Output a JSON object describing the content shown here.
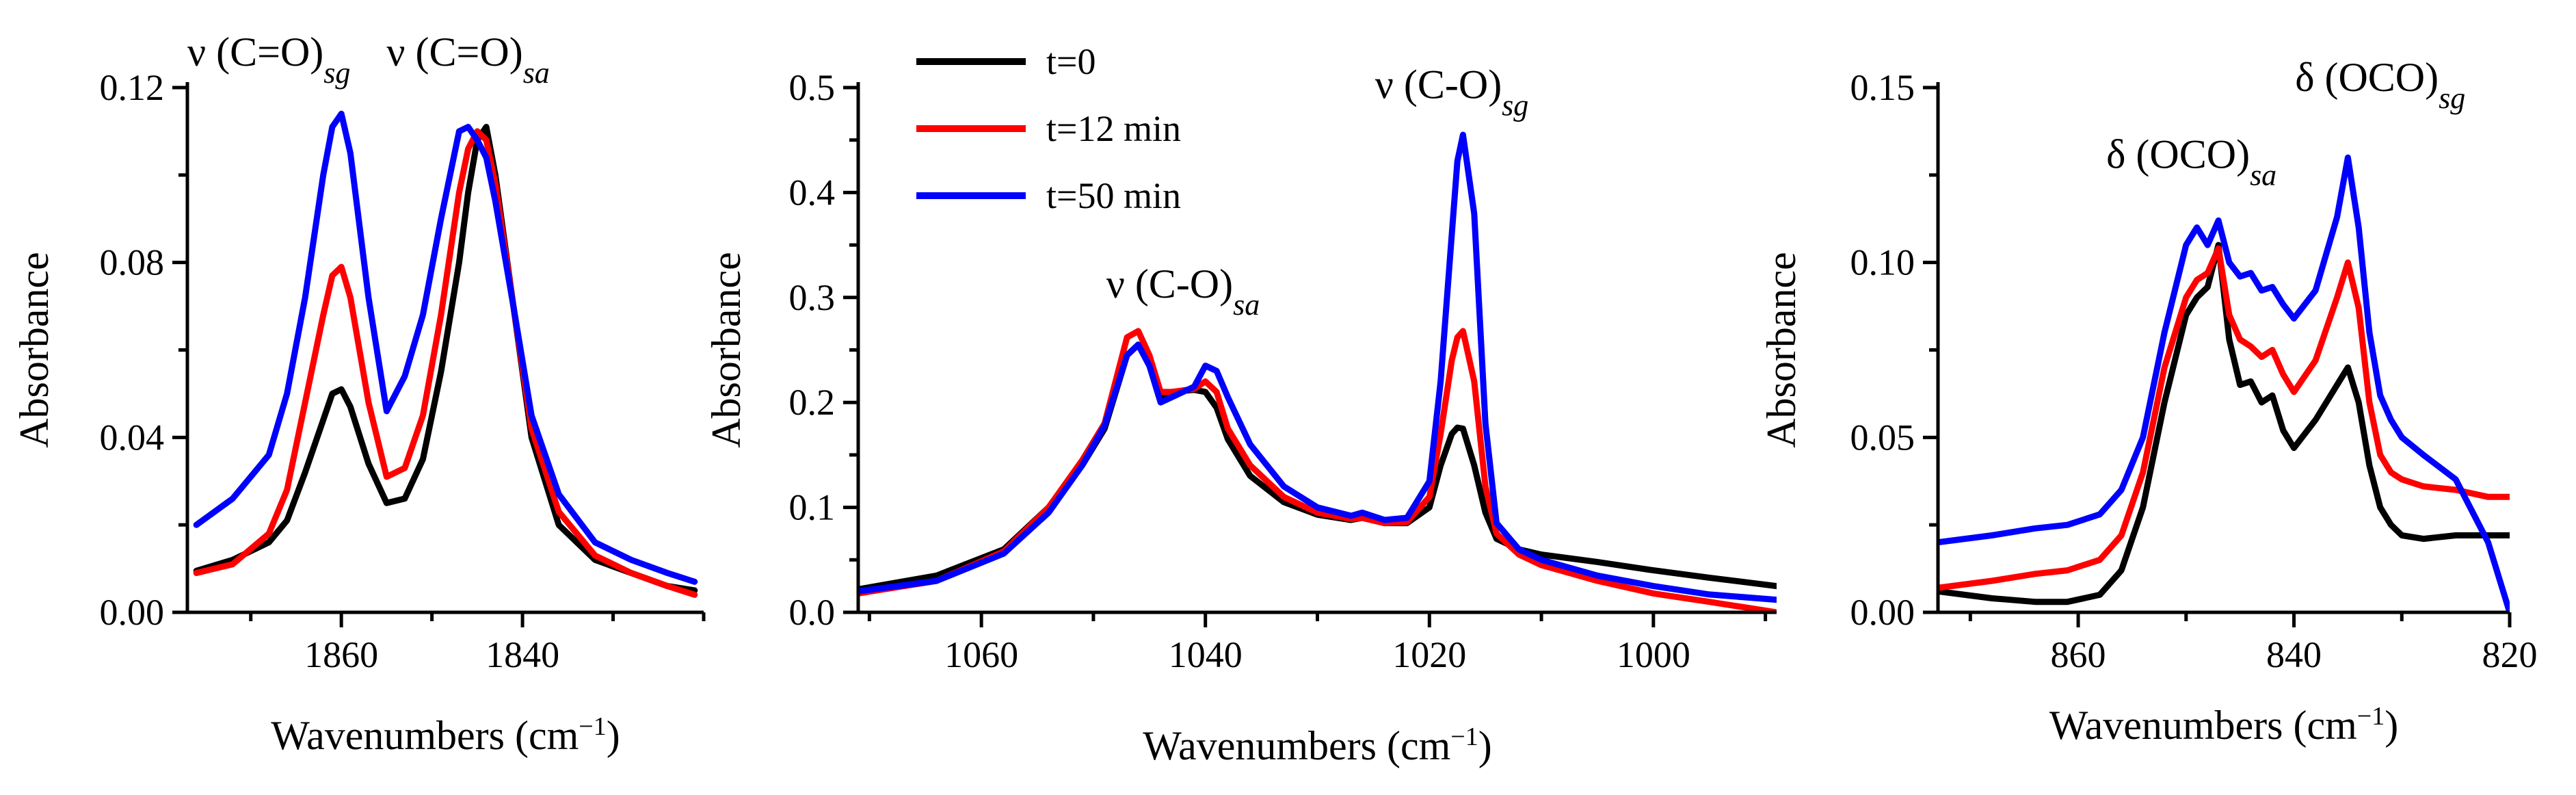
{
  "chart_data": [
    {
      "id": "p1",
      "type": "line",
      "xlabel": "Wavenumbers (cm",
      "xlabel_sup": "−1",
      "xlabel_close": ")",
      "ylabel": "Absorbance",
      "xlim": [
        1877,
        1820
      ],
      "ylim": [
        0,
        0.12
      ],
      "xticks": [
        1860,
        1840
      ],
      "xtick_labels": [
        "1860",
        "1840"
      ],
      "yticks": [
        0,
        0.04,
        0.08,
        0.12
      ],
      "ytick_labels": [
        "0.00",
        "0.04",
        "0.08",
        "0.12"
      ],
      "annotations": [
        {
          "key": "a1",
          "prefix": "ν (C=O)",
          "sub": "sg",
          "x": 1868,
          "y": 0.125
        },
        {
          "key": "a2",
          "prefix": "ν (C=O)",
          "sub": "sa",
          "x": 1846,
          "y": 0.125
        }
      ],
      "series": [
        {
          "name": "t=0",
          "color": "#000000",
          "x": [
            1876,
            1872,
            1868,
            1866,
            1864,
            1862,
            1861,
            1860,
            1859,
            1857,
            1855,
            1853,
            1851,
            1849,
            1847,
            1846,
            1845,
            1844,
            1843,
            1841,
            1839,
            1836,
            1832,
            1828,
            1824,
            1821
          ],
          "y": [
            0.0095,
            0.012,
            0.016,
            0.021,
            0.032,
            0.044,
            0.05,
            0.051,
            0.047,
            0.034,
            0.025,
            0.026,
            0.035,
            0.055,
            0.08,
            0.096,
            0.108,
            0.111,
            0.1,
            0.07,
            0.04,
            0.02,
            0.012,
            0.009,
            0.006,
            0.005
          ]
        },
        {
          "name": "t=12 min",
          "color": "#ff0000",
          "x": [
            1876,
            1872,
            1868,
            1866,
            1864,
            1862,
            1861,
            1860,
            1859,
            1857,
            1855,
            1853,
            1851,
            1849,
            1847,
            1846,
            1845,
            1844,
            1843,
            1841,
            1839,
            1836,
            1832,
            1828,
            1824,
            1821
          ],
          "y": [
            0.009,
            0.011,
            0.018,
            0.028,
            0.048,
            0.068,
            0.077,
            0.079,
            0.072,
            0.048,
            0.031,
            0.033,
            0.045,
            0.068,
            0.096,
            0.106,
            0.11,
            0.108,
            0.098,
            0.07,
            0.042,
            0.023,
            0.013,
            0.009,
            0.006,
            0.004
          ]
        },
        {
          "name": "t=50 min",
          "color": "#0000ff",
          "x": [
            1876,
            1872,
            1868,
            1866,
            1864,
            1862,
            1861,
            1860,
            1859,
            1857,
            1855,
            1853,
            1851,
            1849,
            1847,
            1846,
            1845,
            1844,
            1843,
            1841,
            1839,
            1836,
            1832,
            1828,
            1824,
            1821
          ],
          "y": [
            0.02,
            0.026,
            0.036,
            0.05,
            0.072,
            0.1,
            0.111,
            0.114,
            0.105,
            0.072,
            0.046,
            0.054,
            0.068,
            0.09,
            0.11,
            0.111,
            0.108,
            0.104,
            0.094,
            0.07,
            0.045,
            0.027,
            0.016,
            0.012,
            0.009,
            0.007
          ]
        }
      ]
    },
    {
      "id": "p2",
      "type": "line",
      "xlabel": "Wavenumbers (cm",
      "xlabel_sup": "−1",
      "xlabel_close": ")",
      "ylabel": "Absorbance",
      "xlim": [
        1071,
        989
      ],
      "ylim": [
        0,
        0.5
      ],
      "xticks": [
        1060,
        1040,
        1020,
        1000
      ],
      "xtick_labels": [
        "1060",
        "1040",
        "1020",
        "1000"
      ],
      "yticks": [
        0,
        0.1,
        0.2,
        0.3,
        0.4,
        0.5
      ],
      "ytick_labels": [
        "0.0",
        "0.1",
        "0.2",
        "0.3",
        "0.4",
        "0.5"
      ],
      "annotations": [
        {
          "key": "a1",
          "prefix": "ν (C-O)",
          "sub": "sa",
          "x": 1042,
          "y": 0.3
        },
        {
          "key": "a2",
          "prefix": "ν (C-O)",
          "sub": "sg",
          "x": 1018,
          "y": 0.49
        }
      ],
      "legend": {
        "placement": "top-left",
        "items": [
          {
            "label": "t=0",
            "color": "#000000"
          },
          {
            "label": "t=12 min",
            "color": "#ff0000"
          },
          {
            "label": "t=50 min",
            "color": "#0000ff"
          }
        ]
      },
      "series": [
        {
          "name": "t=0",
          "color": "#000000",
          "x": [
            1071,
            1064,
            1058,
            1054,
            1051,
            1049,
            1047,
            1046,
            1045,
            1044,
            1043,
            1041,
            1040,
            1039,
            1038,
            1036,
            1033,
            1030,
            1027,
            1026,
            1024,
            1022,
            1020,
            1019,
            1018,
            1017.5,
            1017,
            1016,
            1015,
            1014,
            1012,
            1010,
            1005,
            1000,
            995,
            989
          ],
          "y": [
            0.022,
            0.035,
            0.06,
            0.1,
            0.14,
            0.175,
            0.245,
            0.255,
            0.235,
            0.205,
            0.21,
            0.212,
            0.21,
            0.195,
            0.165,
            0.13,
            0.105,
            0.093,
            0.088,
            0.09,
            0.085,
            0.085,
            0.1,
            0.14,
            0.17,
            0.176,
            0.175,
            0.14,
            0.095,
            0.07,
            0.06,
            0.055,
            0.048,
            0.04,
            0.033,
            0.025
          ]
        },
        {
          "name": "t=12 min",
          "color": "#ff0000",
          "x": [
            1071,
            1064,
            1058,
            1054,
            1051,
            1049,
            1047,
            1046,
            1045,
            1044,
            1043,
            1041,
            1040,
            1039,
            1038,
            1036,
            1033,
            1030,
            1027,
            1026,
            1024,
            1022,
            1020,
            1019,
            1018,
            1017.5,
            1017,
            1016,
            1015,
            1014,
            1012,
            1010,
            1005,
            1000,
            995,
            989
          ],
          "y": [
            0.018,
            0.03,
            0.058,
            0.1,
            0.145,
            0.18,
            0.262,
            0.268,
            0.245,
            0.21,
            0.21,
            0.213,
            0.22,
            0.21,
            0.175,
            0.14,
            0.11,
            0.095,
            0.089,
            0.09,
            0.085,
            0.086,
            0.11,
            0.17,
            0.24,
            0.262,
            0.268,
            0.22,
            0.12,
            0.075,
            0.055,
            0.045,
            0.03,
            0.018,
            0.01,
            0.0
          ]
        },
        {
          "name": "t=50 min",
          "color": "#0000ff",
          "x": [
            1071,
            1064,
            1058,
            1054,
            1051,
            1049,
            1047,
            1046,
            1045,
            1044,
            1043,
            1041,
            1040,
            1039,
            1038,
            1036,
            1033,
            1030,
            1027,
            1026,
            1024,
            1022,
            1020,
            1019,
            1018,
            1017.5,
            1017,
            1016,
            1015,
            1014,
            1012,
            1010,
            1005,
            1000,
            995,
            989
          ],
          "y": [
            0.02,
            0.03,
            0.056,
            0.095,
            0.14,
            0.178,
            0.245,
            0.255,
            0.235,
            0.2,
            0.205,
            0.215,
            0.235,
            0.23,
            0.205,
            0.16,
            0.12,
            0.1,
            0.092,
            0.095,
            0.088,
            0.09,
            0.125,
            0.22,
            0.36,
            0.43,
            0.455,
            0.38,
            0.18,
            0.085,
            0.06,
            0.05,
            0.035,
            0.025,
            0.017,
            0.012
          ]
        }
      ]
    },
    {
      "id": "p3",
      "type": "line",
      "xlabel": "Wavenumbers (cm",
      "xlabel_sup": "−1",
      "xlabel_close": ")",
      "ylabel": "Absorbance",
      "xlim": [
        873,
        820
      ],
      "ylim": [
        0,
        0.15
      ],
      "xticks": [
        860,
        840,
        820
      ],
      "xtick_labels": [
        "860",
        "840",
        "820"
      ],
      "yticks": [
        0,
        0.05,
        0.1,
        0.15
      ],
      "ytick_labels": [
        "0.00",
        "0.05",
        "0.10",
        "0.15"
      ],
      "annotations": [
        {
          "key": "a1",
          "prefix": "δ (OCO)",
          "sub": "sa",
          "x": 849.5,
          "y": 0.127
        },
        {
          "key": "a2",
          "prefix": "δ (OCO)",
          "sub": "sg",
          "x": 832,
          "y": 0.149
        }
      ],
      "series": [
        {
          "name": "t=0",
          "color": "#000000",
          "x": [
            873,
            868,
            864,
            861,
            858,
            856,
            854,
            852,
            850,
            849,
            848,
            847,
            846,
            845,
            844,
            843,
            842,
            841,
            840,
            838,
            836,
            835,
            834,
            833,
            832,
            831,
            830,
            828,
            825,
            822,
            820
          ],
          "y": [
            0.006,
            0.004,
            0.003,
            0.003,
            0.005,
            0.012,
            0.03,
            0.06,
            0.085,
            0.09,
            0.093,
            0.105,
            0.078,
            0.065,
            0.066,
            0.06,
            0.062,
            0.052,
            0.047,
            0.055,
            0.065,
            0.07,
            0.06,
            0.042,
            0.03,
            0.025,
            0.022,
            0.021,
            0.022,
            0.022,
            0.022
          ]
        },
        {
          "name": "t=12 min",
          "color": "#ff0000",
          "x": [
            873,
            868,
            864,
            861,
            858,
            856,
            854,
            852,
            850,
            849,
            848,
            847,
            846,
            845,
            844,
            843,
            842,
            841,
            840,
            838,
            836,
            835,
            834,
            833,
            832,
            831,
            830,
            828,
            825,
            822,
            820
          ],
          "y": [
            0.007,
            0.009,
            0.011,
            0.012,
            0.015,
            0.022,
            0.04,
            0.07,
            0.09,
            0.095,
            0.097,
            0.104,
            0.085,
            0.078,
            0.076,
            0.073,
            0.075,
            0.068,
            0.063,
            0.072,
            0.09,
            0.1,
            0.087,
            0.06,
            0.045,
            0.04,
            0.038,
            0.036,
            0.035,
            0.033,
            0.033
          ]
        },
        {
          "name": "t=50 min",
          "color": "#0000ff",
          "x": [
            873,
            868,
            864,
            861,
            858,
            856,
            854,
            852,
            850,
            849,
            848,
            847,
            846,
            845,
            844,
            843,
            842,
            841,
            840,
            838,
            836,
            835,
            834,
            833,
            832,
            831,
            830,
            828,
            825,
            822,
            820
          ],
          "y": [
            0.02,
            0.022,
            0.024,
            0.025,
            0.028,
            0.035,
            0.05,
            0.08,
            0.105,
            0.11,
            0.105,
            0.112,
            0.1,
            0.096,
            0.097,
            0.092,
            0.093,
            0.088,
            0.084,
            0.092,
            0.113,
            0.13,
            0.11,
            0.08,
            0.062,
            0.055,
            0.05,
            0.045,
            0.038,
            0.02,
            0.0
          ]
        }
      ]
    }
  ]
}
